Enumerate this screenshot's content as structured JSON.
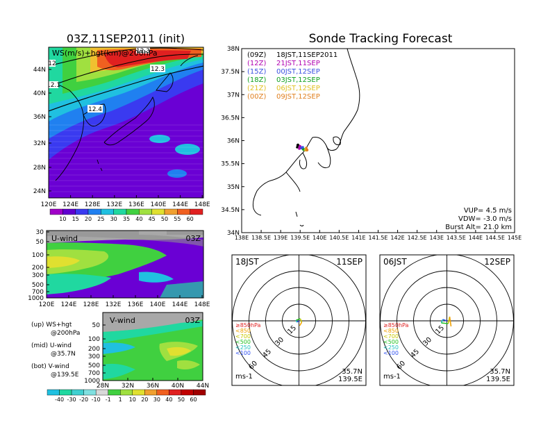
{
  "left": {
    "title": "03Z,11SEP2011 (init)",
    "map": {
      "label": "WS(m/s)+hgt(km)@200hPa",
      "lon_ticks": [
        "120E",
        "124E",
        "128E",
        "132E",
        "136E",
        "140E",
        "144E",
        "148E"
      ],
      "lat_ticks": [
        "44N",
        "40N",
        "36N",
        "32N",
        "28N",
        "24N"
      ],
      "contour_labels": [
        "12",
        "12.1",
        "12.3",
        "12.4",
        "12.3"
      ],
      "colorbar": [
        "10",
        "15",
        "20",
        "25",
        "30",
        "35",
        "40",
        "45",
        "50",
        "55",
        "60"
      ]
    },
    "u_panel": {
      "label": "U-wind",
      "time": "03Z",
      "p_ticks": [
        "30",
        "50",
        "100",
        "200",
        "300",
        "500",
        "700",
        "1000"
      ],
      "lon_ticks": [
        "120E",
        "124E",
        "128E",
        "132E",
        "136E",
        "140E",
        "144E",
        "148E"
      ]
    },
    "v_panel": {
      "label": "V-wind",
      "time": "03Z",
      "p_ticks": [
        "50",
        "100",
        "200",
        "300",
        "500",
        "700",
        "1000"
      ],
      "lat_ticks": [
        "28N",
        "32N",
        "36N",
        "40N",
        "44N"
      ]
    },
    "legend": [
      [
        "(up) WS+hgt",
        "@200hPa"
      ],
      [
        "(mid) U-wind",
        "@35.7N"
      ],
      [
        "(bot) V-wind",
        "@139.5E"
      ]
    ],
    "colorbar2": [
      "-40",
      "-30",
      "-20",
      "-10",
      "-1",
      "1",
      "10",
      "20",
      "30",
      "40",
      "50",
      "60"
    ]
  },
  "right": {
    "title": "Sonde Tracking Forecast",
    "map": {
      "lat_ticks": [
        "38N",
        "37.5N",
        "37N",
        "36.5N",
        "36N",
        "35.5N",
        "35N",
        "34.5N",
        "34N"
      ],
      "lon_ticks": [
        "138E",
        "138.5E",
        "139E",
        "139.5E",
        "140E",
        "140.5E",
        "141E",
        "141.5E",
        "142E",
        "142.5E",
        "143E",
        "143.5E",
        "144E",
        "144.5E",
        "145E"
      ],
      "runs": [
        {
          "run": "(09Z)",
          "valid": "18JST,11SEP2011",
          "color": "#000000"
        },
        {
          "run": "(12Z)",
          "valid": "21JST,11SEP",
          "color": "#b000b0"
        },
        {
          "run": "(15Z)",
          "valid": "00JST,12SEP",
          "color": "#3a50e0"
        },
        {
          "run": "(18Z)",
          "valid": "03JST,12SEP",
          "color": "#10a020"
        },
        {
          "run": "(21Z)",
          "valid": "06JST,12SEP",
          "color": "#e0c020"
        },
        {
          "run": "(00Z)",
          "valid": "09JST,12SEP",
          "color": "#e08020"
        }
      ],
      "params": [
        "VUP= 4.5 m/s",
        "VDW= -3.0 m/s",
        "Burst Alt= 21.0 km"
      ]
    },
    "polars": [
      {
        "time": "18JST",
        "date": "11SEP",
        "loc_lat": "35.7N",
        "loc_lon": "139.5E",
        "units": "ms-1",
        "rings": [
          "15",
          "30",
          "45",
          "60"
        ]
      },
      {
        "time": "06JST",
        "date": "12SEP",
        "loc_lat": "35.7N",
        "loc_lon": "139.5E",
        "units": "ms-1",
        "rings": [
          "15",
          "30",
          "45",
          "60"
        ]
      }
    ],
    "levels": [
      {
        "label": "≥850hPa",
        "color": "#e02020"
      },
      {
        "label": "<850",
        "color": "#f0a000"
      },
      {
        "label": "<700",
        "color": "#c8c800"
      },
      {
        "label": "<500",
        "color": "#20c020"
      },
      {
        "label": "<250",
        "color": "#20c0c0"
      },
      {
        "label": "<100",
        "color": "#3050f0"
      }
    ]
  },
  "colors": {
    "ws_scale": [
      "#a000c8",
      "#6000d0",
      "#3a3af0",
      "#2080f0",
      "#20c0e0",
      "#20d8a0",
      "#40d040",
      "#a0e040",
      "#e0e030",
      "#f0a030",
      "#f06020",
      "#e02020"
    ]
  }
}
